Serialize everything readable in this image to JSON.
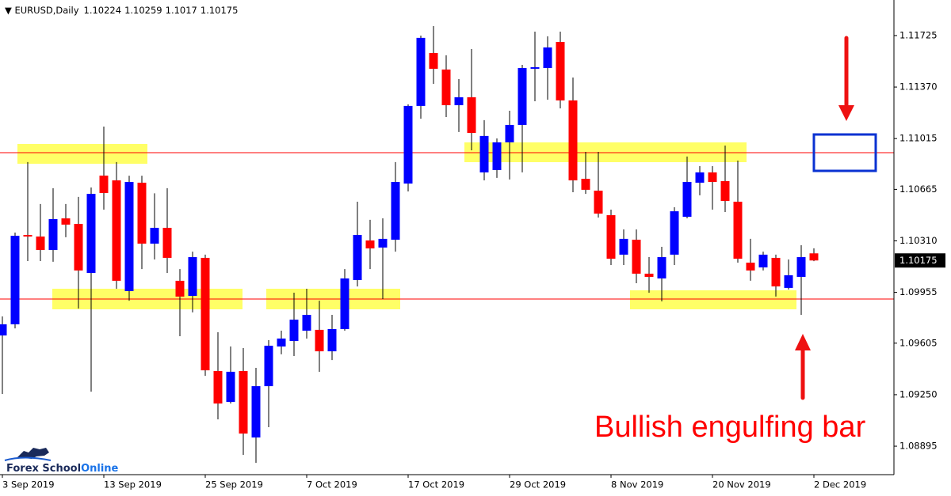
{
  "chart_data": {
    "type": "candlestick",
    "symbol": "EURUSD,Daily",
    "annotation": "Bullish engulfing bar",
    "logo": [
      "Forex School",
      "Online"
    ],
    "categories": [
      "3 Sep 2019",
      null,
      null,
      null,
      null,
      null,
      null,
      null,
      "13 Sep 2019",
      null,
      null,
      null,
      null,
      null,
      null,
      null,
      "25 Sep 2019",
      null,
      null,
      null,
      null,
      null,
      null,
      null,
      "7 Oct 2019",
      null,
      null,
      null,
      null,
      null,
      null,
      null,
      "17 Oct 2019",
      null,
      null,
      null,
      null,
      null,
      null,
      null,
      "29 Oct 2019",
      null,
      null,
      null,
      null,
      null,
      null,
      null,
      "8 Nov 2019",
      null,
      null,
      null,
      null,
      null,
      null,
      null,
      "20 Nov 2019",
      null,
      null,
      null,
      null,
      null,
      null,
      null,
      "2 Dec 2019"
    ],
    "open": [
      1.09658,
      1.09735,
      1.10351,
      1.1034,
      1.10247,
      1.10465,
      1.10427,
      1.10089,
      1.1076,
      1.10727,
      1.09964,
      1.10711,
      1.10291,
      1.104,
      1.10035,
      1.09931,
      1.10193,
      1.09413,
      1.092,
      1.09413,
      1.08955,
      1.09309,
      1.09582,
      1.0962,
      1.09691,
      1.09697,
      1.09549,
      1.09702,
      1.1004,
      1.10313,
      1.10264,
      1.10318,
      1.10705,
      1.1124,
      1.11605,
      1.11491,
      1.11245,
      1.113,
      1.10782,
      1.10798,
      1.10989,
      1.11109,
      1.11496,
      1.11501,
      1.11681,
      1.11278,
      1.10738,
      1.10656,
      1.10487,
      1.10215,
      1.10318,
      1.10084,
      1.10051,
      1.10215,
      1.10476,
      1.10711,
      1.10782,
      1.10722,
      1.1058,
      1.1016,
      1.10127,
      1.10193,
      1.09986,
      1.10062,
      1.10224
    ],
    "high": [
      1.09789,
      1.10367,
      1.10853,
      1.10564,
      1.10673,
      1.10564,
      1.10613,
      1.10678,
      1.11098,
      1.10853,
      1.10759,
      1.10759,
      1.10638,
      1.10673,
      1.10116,
      1.10236,
      1.10215,
      1.0968,
      1.09582,
      1.09571,
      1.09435,
      1.09626,
      1.09691,
      1.09953,
      1.0998,
      1.09898,
      1.098,
      1.10116,
      1.1058,
      1.10455,
      1.10465,
      1.10853,
      1.11251,
      1.11725,
      1.1179,
      1.11589,
      1.11425,
      1.11632,
      1.11142,
      1.11016,
      1.11207,
      1.11523,
      1.11752,
      1.1172,
      1.11752,
      1.11436,
      1.10923,
      1.10923,
      1.10525,
      1.10389,
      1.10389,
      1.10198,
      1.10269,
      1.10542,
      1.10891,
      1.10825,
      1.10825,
      1.10967,
      1.10863,
      1.10324,
      1.10236,
      1.10215,
      1.10182,
      1.1028,
      1.10259
    ],
    "low": [
      1.09255,
      1.09707,
      1.10171,
      1.10171,
      1.10166,
      1.10335,
      1.09844,
      1.09271,
      1.10525,
      1.0998,
      1.09898,
      1.10116,
      1.10182,
      1.10089,
      1.09653,
      1.09817,
      1.0938,
      1.0908,
      1.09189,
      1.08835,
      1.0878,
      1.09026,
      1.09528,
      1.09517,
      1.09637,
      1.09408,
      1.09489,
      1.09691,
      1.09996,
      1.10116,
      1.09909,
      1.10236,
      1.10651,
      1.11152,
      1.11392,
      1.11163,
      1.1106,
      1.10934,
      1.10727,
      1.10744,
      1.10733,
      1.10782,
      1.11272,
      1.11283,
      1.11223,
      1.10645,
      1.10634,
      1.10471,
      1.10144,
      1.10144,
      1.10018,
      1.09953,
      1.09893,
      1.10144,
      1.10465,
      1.10624,
      1.10525,
      1.10509,
      1.1016,
      1.10035,
      1.10106,
      1.09926,
      1.09975,
      1.098,
      1.1017
    ],
    "close": [
      1.09735,
      1.10345,
      1.1034,
      1.10247,
      1.1046,
      1.10422,
      1.10106,
      1.10634,
      1.1064,
      1.10035,
      1.10716,
      1.10291,
      1.104,
      1.10193,
      1.09926,
      1.10198,
      1.09418,
      1.09189,
      1.09408,
      1.08982,
      1.09309,
      1.09587,
      1.09637,
      1.09767,
      1.098,
      1.09549,
      1.09702,
      1.10051,
      1.10351,
      1.10258,
      1.10324,
      1.10716,
      1.1124,
      1.11709,
      1.11496,
      1.11245,
      1.113,
      1.11054,
      1.11033,
      1.10989,
      1.11109,
      1.11501,
      1.11507,
      1.11643,
      1.11278,
      1.10727,
      1.10662,
      1.10498,
      1.10187,
      1.10324,
      1.10084,
      1.10062,
      1.10198,
      1.10514,
      1.10716,
      1.10782,
      1.10716,
      1.10585,
      1.10187,
      1.10106,
      1.10215,
      1.09996,
      1.10073,
      1.10198,
      1.10175
    ],
    "up_color": "#0000ff",
    "down_color": "#ff0000",
    "ylim": [
      1.08699,
      1.1197
    ],
    "yticks": [
      1.11725,
      {
        "value": 1.1137,
        "label": "1.11370"
      },
      1.11015,
      1.10665,
      {
        "value": 1.1031,
        "label": "1.10310"
      },
      1.09955,
      1.09605,
      {
        "value": 1.0925,
        "label": "1.09250"
      },
      1.08895
    ]
  }
}
